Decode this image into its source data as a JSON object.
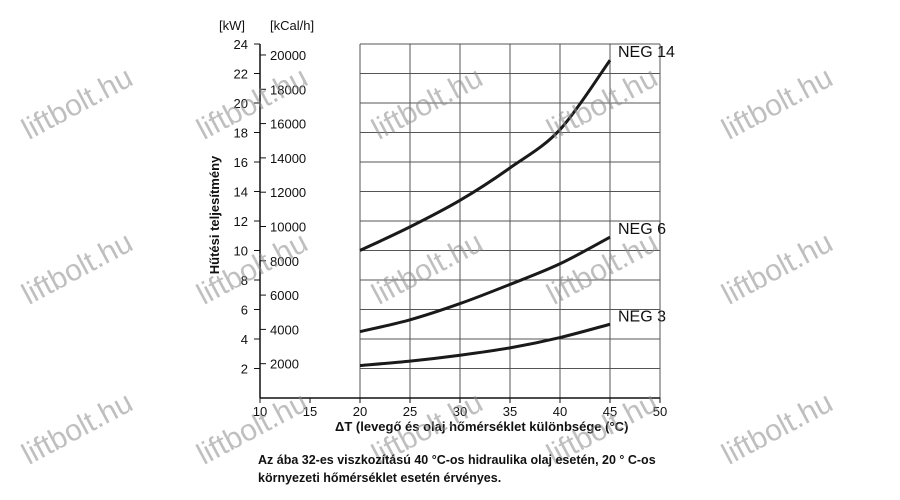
{
  "chart_data": {
    "type": "line",
    "xlabel": "ΔT (levegő és olaj hőmérséklet különbsége (°C)",
    "ylabel": "Hűtési teljesítmény",
    "y_unit_left": "[kW]",
    "y_unit_right": "[kCal/h]",
    "xlim": [
      10,
      50
    ],
    "ylim": [
      0,
      24
    ],
    "x_ticks": [
      "10",
      "15",
      "20",
      "25",
      "30",
      "35",
      "40",
      "45",
      "50"
    ],
    "y_ticks_kw": [
      "2",
      "4",
      "6",
      "8",
      "10",
      "12",
      "14",
      "16",
      "18",
      "20",
      "22",
      "24"
    ],
    "y_ticks_kcal": [
      "2000",
      "4000",
      "6000",
      "8000",
      "10000",
      "12000",
      "14000",
      "16000",
      "18000",
      "20000"
    ],
    "grid": true,
    "series": [
      {
        "name": "NEG 14",
        "x": [
          20,
          25,
          30,
          35,
          40,
          45
        ],
        "y": [
          10.0,
          11.6,
          13.4,
          15.6,
          18.2,
          22.9
        ]
      },
      {
        "name": "NEG 6",
        "x": [
          20,
          25,
          30,
          35,
          40,
          45
        ],
        "y": [
          4.5,
          5.3,
          6.4,
          7.7,
          9.1,
          10.9
        ]
      },
      {
        "name": "NEG 3",
        "x": [
          20,
          25,
          30,
          35,
          40,
          45
        ],
        "y": [
          2.2,
          2.5,
          2.9,
          3.4,
          4.1,
          5.0
        ]
      }
    ]
  },
  "watermark": "liftbolt.hu",
  "note": "Az ába 32-es viszkozítású 40 °C-os hidraulika olaj esetén, 20 ° C-os környezeti hőmérséklet esetén érvényes."
}
